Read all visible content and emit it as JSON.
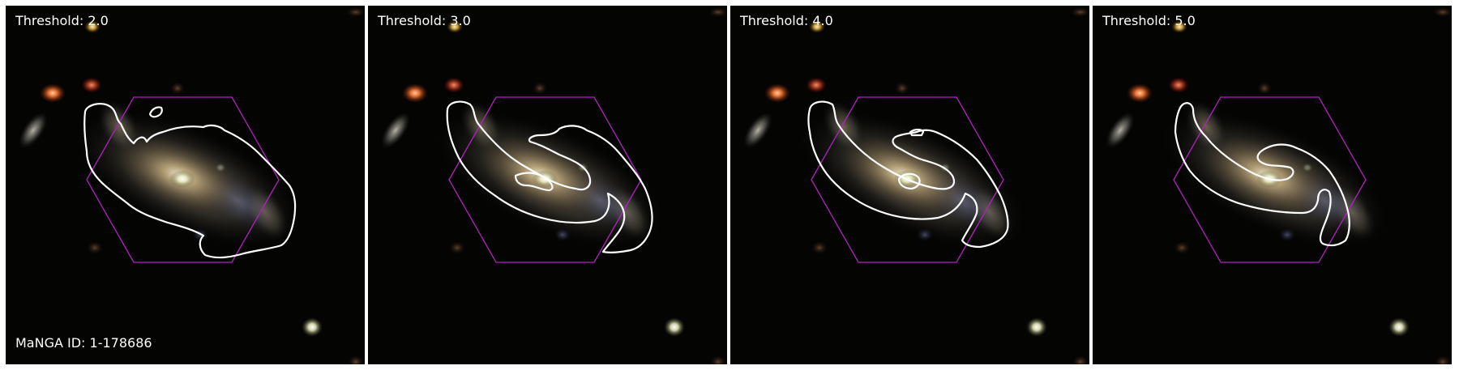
{
  "panels": [
    {
      "threshold_label": "Threshold: 2.0"
    },
    {
      "threshold_label": "Threshold: 3.0"
    },
    {
      "threshold_label": "Threshold: 4.0"
    },
    {
      "threshold_label": "Threshold: 5.0"
    }
  ],
  "manga_id_label": "MaNGA ID: 1-178686",
  "colors": {
    "background": "#040403",
    "ifu_hexagon": "#b220c0",
    "contour": "#ffffff",
    "text": "#ffffff"
  }
}
